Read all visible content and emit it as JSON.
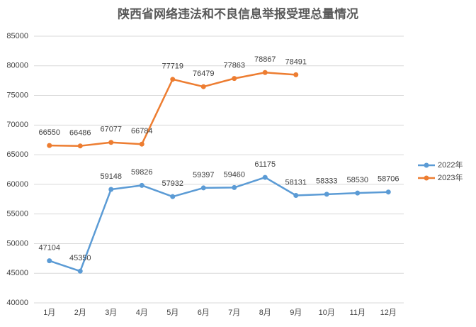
{
  "chart_data": {
    "type": "line",
    "title": "陕西省网络违法和不良信息举报受理总量情况",
    "categories": [
      "1月",
      "2月",
      "3月",
      "4月",
      "5月",
      "6月",
      "7月",
      "8月",
      "9月",
      "10月",
      "11月",
      "12月"
    ],
    "series": [
      {
        "name": "2022年",
        "color": "#5b9bd5",
        "values": [
          47104,
          45350,
          59148,
          59826,
          57932,
          59397,
          59460,
          61175,
          58131,
          58333,
          58530,
          58706
        ]
      },
      {
        "name": "2023年",
        "color": "#ed7d31",
        "values": [
          66550,
          66486,
          67077,
          66784,
          77719,
          76479,
          77863,
          78867,
          78491,
          null,
          null,
          null
        ]
      }
    ],
    "ylim": [
      40000,
      85000
    ],
    "yticks": [
      40000,
      45000,
      50000,
      55000,
      60000,
      65000,
      70000,
      75000,
      80000,
      85000
    ],
    "grid": true,
    "legend": "right"
  }
}
